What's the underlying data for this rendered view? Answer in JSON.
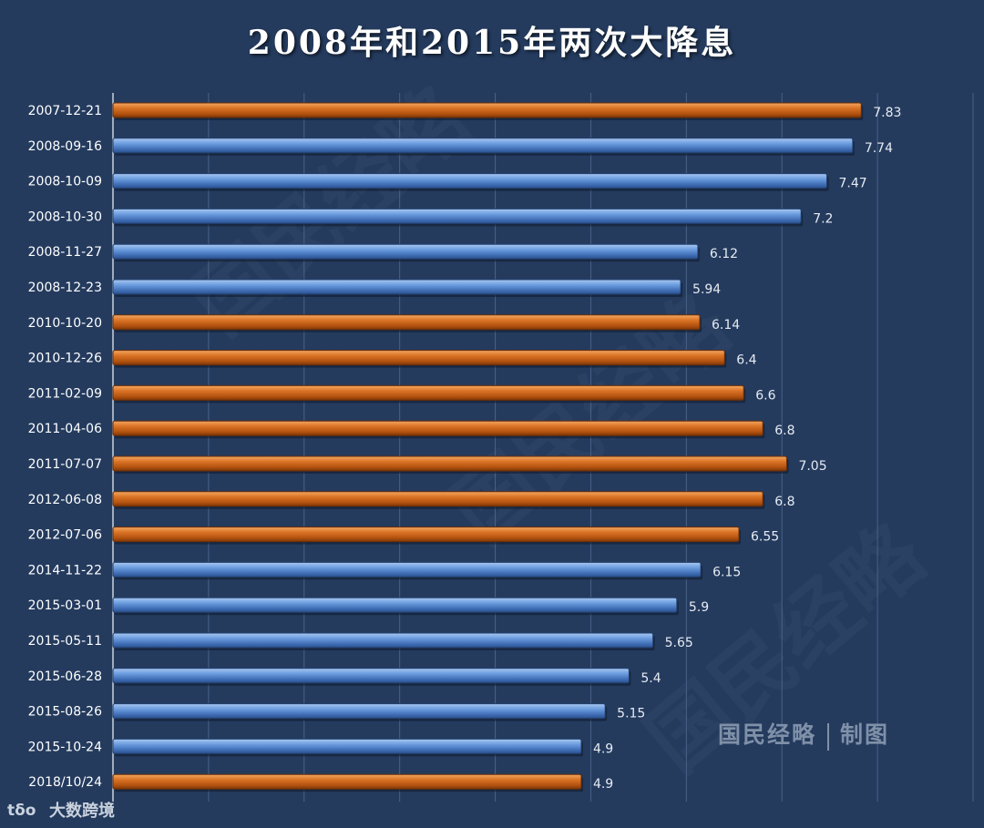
{
  "title": "2008年和2015年两次大降息",
  "credit": {
    "left": "国民经略",
    "right": "制图"
  },
  "source": {
    "text": "大数跨境",
    "icon": "brand-logo-icon"
  },
  "watermark": "国民经略",
  "colors": {
    "background": "#243b5e",
    "blue_bar": "#5b8fd6",
    "orange_bar": "#d2691e",
    "gridline": "#4a6288"
  },
  "chart_data": {
    "type": "bar",
    "orientation": "horizontal",
    "categories": [
      "2007-12-21",
      "2008-09-16",
      "2008-10-09",
      "2008-10-30",
      "2008-11-27",
      "2008-12-23",
      "2010-10-20",
      "2010-12-26",
      "2011-02-09",
      "2011-04-06",
      "2011-07-07",
      "2012-06-08",
      "2012-07-06",
      "2014-11-22",
      "2015-03-01",
      "2015-05-11",
      "2015-06-28",
      "2015-08-26",
      "2015-10-24",
      "2018/10/24"
    ],
    "values": [
      7.83,
      7.74,
      7.47,
      7.2,
      6.12,
      5.94,
      6.14,
      6.4,
      6.6,
      6.8,
      7.05,
      6.8,
      6.55,
      6.15,
      5.9,
      5.65,
      5.4,
      5.15,
      4.9,
      4.9
    ],
    "value_labels": [
      "7.83",
      "7.74",
      "7.47",
      "7.2",
      "6.12",
      "5.94",
      "6.14",
      "6.4",
      "6.6",
      "6.8",
      "7.05",
      "6.8",
      "6.55",
      "6.15",
      "5.9",
      "5.65",
      "5.4",
      "5.15",
      "4.9",
      "4.9"
    ],
    "bar_colors": [
      "orange",
      "blue",
      "blue",
      "blue",
      "blue",
      "blue",
      "orange",
      "orange",
      "orange",
      "orange",
      "orange",
      "orange",
      "orange",
      "blue",
      "blue",
      "blue",
      "blue",
      "blue",
      "blue",
      "orange"
    ],
    "xlim": [
      0,
      9
    ],
    "grid": true,
    "legend": "none",
    "xlabel": "",
    "ylabel": ""
  }
}
